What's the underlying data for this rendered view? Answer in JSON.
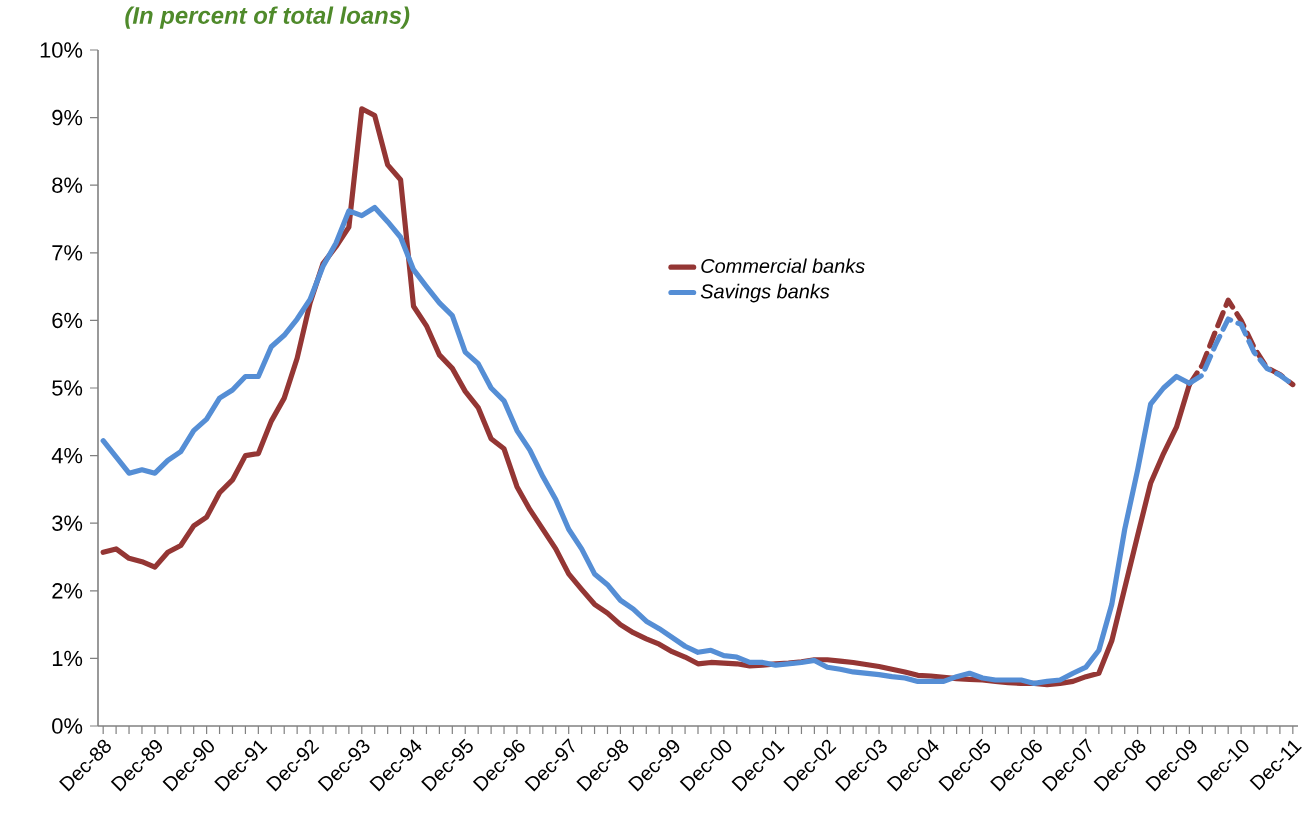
{
  "chart_data": {
    "type": "line",
    "title": "(In percent of total loans)",
    "categories": [
      "Dec-88",
      null,
      null,
      null,
      "Dec-89",
      null,
      null,
      null,
      "Dec-90",
      null,
      null,
      null,
      "Dec-91",
      null,
      null,
      null,
      "Dec-92",
      null,
      null,
      null,
      "Dec-93",
      null,
      null,
      null,
      "Dec-94",
      null,
      null,
      null,
      "Dec-95",
      null,
      null,
      null,
      "Dec-96",
      null,
      null,
      null,
      "Dec-97",
      null,
      null,
      null,
      "Dec-98",
      null,
      null,
      null,
      "Dec-99",
      null,
      null,
      null,
      "Dec-00",
      null,
      null,
      null,
      "Dec-01",
      null,
      null,
      null,
      "Dec-02",
      null,
      null,
      null,
      "Dec-03",
      null,
      null,
      null,
      "Dec-04",
      null,
      null,
      null,
      "Dec-05",
      null,
      null,
      null,
      "Dec-06",
      null,
      null,
      null,
      "Dec-07",
      null,
      null,
      null,
      "Dec-08",
      null,
      null,
      null,
      "Dec-09",
      null,
      null,
      null,
      "Dec-10",
      null,
      null,
      null,
      "Dec-11"
    ],
    "ylim": [
      0,
      10
    ],
    "yticks": [
      {
        "value": 0,
        "label": "0%"
      },
      {
        "value": 1,
        "label": "1%"
      },
      {
        "value": 2,
        "label": "2%"
      },
      {
        "value": 3,
        "label": "3%"
      },
      {
        "value": 4,
        "label": "4%"
      },
      {
        "value": 5,
        "label": "5%"
      },
      {
        "value": 6,
        "label": "6%"
      },
      {
        "value": 7,
        "label": "7%"
      },
      {
        "value": 8,
        "label": "8%"
      },
      {
        "value": 9,
        "label": "9%"
      },
      {
        "value": 10,
        "label": "10%"
      }
    ],
    "grid": false,
    "legend": "center",
    "marker": "none",
    "series": [
      {
        "name": "Commercial banks",
        "color": "#943634",
        "line_style": "solid",
        "values": [
          2.57,
          2.62,
          2.48,
          2.43,
          2.35,
          2.57,
          2.67,
          2.96,
          3.09,
          3.45,
          3.64,
          4.0,
          4.03,
          4.51,
          4.85,
          5.44,
          6.26,
          6.84,
          7.09,
          7.38,
          9.13,
          9.03,
          8.3,
          8.08,
          6.21,
          5.92,
          5.49,
          5.29,
          4.95,
          4.71,
          4.25,
          4.1,
          3.54,
          3.2,
          2.91,
          2.62,
          2.25,
          2.02,
          1.8,
          1.67,
          1.5,
          1.38,
          1.29,
          1.21,
          1.1,
          1.02,
          0.92,
          0.94,
          0.93,
          0.92,
          0.89,
          0.9,
          0.92,
          0.93,
          0.95,
          0.98,
          0.98,
          0.96,
          0.94,
          0.91,
          0.88,
          0.84,
          0.8,
          0.75,
          0.74,
          0.72,
          0.7,
          0.69,
          0.68,
          0.66,
          0.64,
          0.63,
          0.63,
          0.61,
          0.63,
          0.66,
          0.73,
          0.78,
          1.26,
          2.04,
          2.82,
          3.59,
          4.03,
          4.42,
          5.05,
          null,
          null,
          null,
          null,
          null,
          null,
          null,
          null
        ]
      },
      {
        "name": "Savings banks",
        "color": "#558ed5",
        "line_style": "solid",
        "values": [
          4.22,
          3.98,
          3.74,
          3.79,
          3.74,
          3.93,
          4.06,
          4.37,
          4.54,
          4.85,
          4.97,
          5.17,
          5.17,
          5.61,
          5.78,
          6.02,
          6.31,
          6.8,
          7.14,
          7.62,
          7.55,
          7.67,
          7.46,
          7.23,
          6.75,
          6.5,
          6.26,
          6.07,
          5.53,
          5.36,
          5.0,
          4.81,
          4.37,
          4.08,
          3.69,
          3.35,
          2.91,
          2.62,
          2.25,
          2.09,
          1.86,
          1.73,
          1.55,
          1.44,
          1.31,
          1.18,
          1.09,
          1.12,
          1.04,
          1.02,
          0.94,
          0.94,
          0.9,
          0.92,
          0.94,
          0.97,
          0.87,
          0.84,
          0.8,
          0.78,
          0.76,
          0.73,
          0.71,
          0.66,
          0.66,
          0.66,
          0.73,
          0.78,
          0.71,
          0.68,
          0.68,
          0.68,
          0.63,
          0.66,
          0.68,
          0.78,
          0.87,
          1.12,
          1.8,
          2.91,
          3.79,
          4.76,
          5.0,
          5.17,
          5.07,
          null,
          null,
          null,
          null,
          null,
          null,
          null,
          null
        ]
      },
      {
        "color": "#943634",
        "line_style": "dashed",
        "values": [
          null,
          null,
          null,
          null,
          null,
          null,
          null,
          null,
          null,
          null,
          null,
          null,
          null,
          null,
          null,
          null,
          null,
          null,
          null,
          null,
          null,
          null,
          null,
          null,
          null,
          null,
          null,
          null,
          null,
          null,
          null,
          null,
          null,
          null,
          null,
          null,
          null,
          null,
          null,
          null,
          null,
          null,
          null,
          null,
          null,
          null,
          null,
          null,
          null,
          null,
          null,
          null,
          null,
          null,
          null,
          null,
          null,
          null,
          null,
          null,
          null,
          null,
          null,
          null,
          null,
          null,
          null,
          null,
          null,
          null,
          null,
          null,
          null,
          null,
          null,
          null,
          null,
          null,
          null,
          null,
          null,
          null,
          null,
          null,
          5.05,
          5.34,
          5.83,
          6.3,
          6.0,
          5.6,
          5.3,
          5.2,
          5.05
        ]
      },
      {
        "color": "#558ed5",
        "line_style": "dashed",
        "values": [
          null,
          null,
          null,
          null,
          null,
          null,
          null,
          null,
          null,
          null,
          null,
          null,
          null,
          null,
          null,
          null,
          null,
          null,
          null,
          null,
          null,
          null,
          null,
          null,
          null,
          null,
          null,
          null,
          null,
          null,
          null,
          null,
          null,
          null,
          null,
          null,
          null,
          null,
          null,
          null,
          null,
          null,
          null,
          null,
          null,
          null,
          null,
          null,
          null,
          null,
          null,
          null,
          null,
          null,
          null,
          null,
          null,
          null,
          null,
          null,
          null,
          null,
          null,
          null,
          null,
          null,
          null,
          null,
          null,
          null,
          null,
          null,
          null,
          null,
          null,
          null,
          null,
          null,
          null,
          null,
          null,
          null,
          null,
          null,
          5.07,
          5.19,
          5.63,
          6.02,
          5.94,
          5.53,
          5.29,
          5.19,
          5.05
        ]
      }
    ]
  }
}
